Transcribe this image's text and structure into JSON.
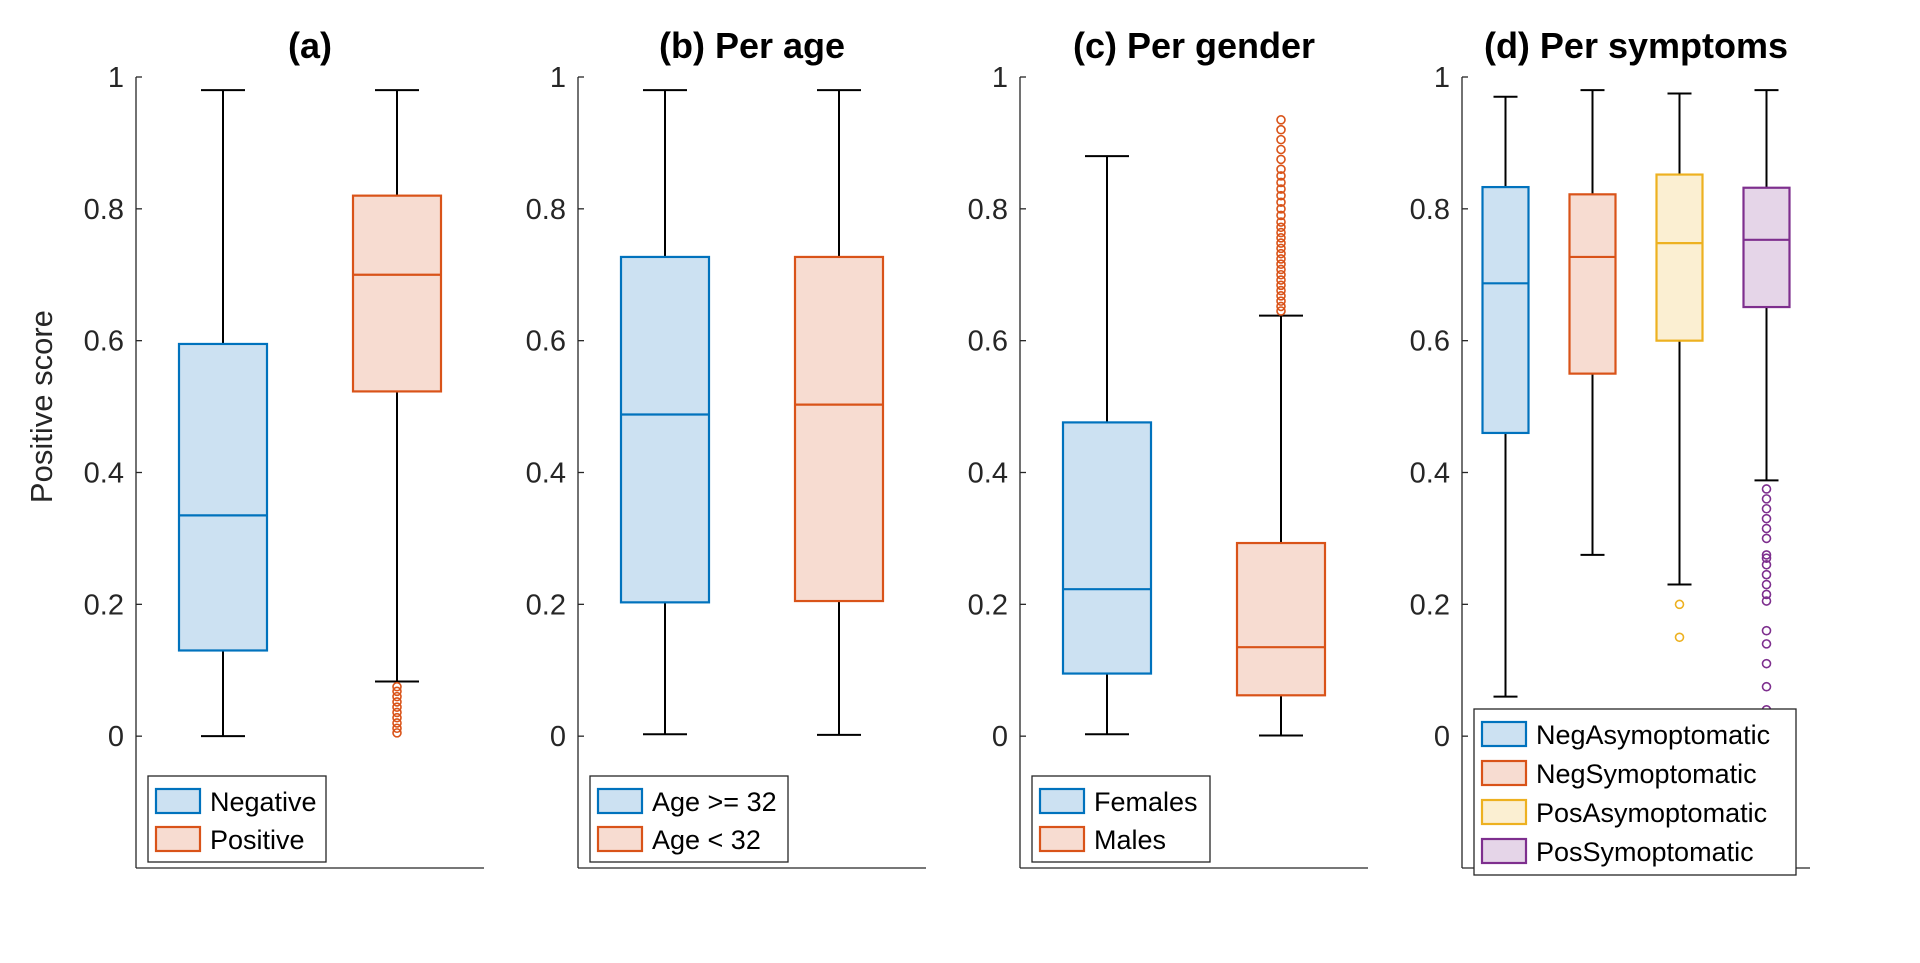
{
  "chart_data": [
    {
      "type": "box",
      "title": "(a)",
      "ylabel": "Positive score",
      "ylim": [
        -0.2,
        1
      ],
      "yticks": [
        "0",
        "0.2",
        "0.4",
        "0.6",
        "0.8",
        "1"
      ],
      "legend_position": "bottom-left",
      "series": [
        {
          "name": "Negative",
          "color": "#0072BD",
          "fill": "#CCE1F2",
          "whisker_low": 0.0,
          "q1": 0.13,
          "median": 0.335,
          "q3": 0.595,
          "whisker_high": 0.98,
          "outliers": []
        },
        {
          "name": "Positive",
          "color": "#D95319",
          "fill": "#F7DCD1",
          "whisker_low": 0.083,
          "q1": 0.523,
          "median": 0.7,
          "q3": 0.82,
          "whisker_high": 0.98,
          "outliers": [
            0.005,
            0.012,
            0.02,
            0.028,
            0.036,
            0.044,
            0.052,
            0.06,
            0.068,
            0.075
          ]
        }
      ]
    },
    {
      "type": "box",
      "title": "(b) Per age",
      "ylim": [
        -0.2,
        1
      ],
      "yticks": [
        "0",
        "0.2",
        "0.4",
        "0.6",
        "0.8",
        "1"
      ],
      "legend_position": "bottom-left",
      "series": [
        {
          "name": "Age >= 32",
          "color": "#0072BD",
          "fill": "#CCE1F2",
          "whisker_low": 0.003,
          "q1": 0.203,
          "median": 0.488,
          "q3": 0.727,
          "whisker_high": 0.98,
          "outliers": []
        },
        {
          "name": "Age < 32",
          "color": "#D95319",
          "fill": "#F7DCD1",
          "whisker_low": 0.002,
          "q1": 0.205,
          "median": 0.503,
          "q3": 0.727,
          "whisker_high": 0.98,
          "outliers": []
        }
      ]
    },
    {
      "type": "box",
      "title": "(c) Per gender",
      "ylim": [
        -0.2,
        1
      ],
      "yticks": [
        "0",
        "0.2",
        "0.4",
        "0.6",
        "0.8",
        "1"
      ],
      "legend_position": "bottom-left",
      "series": [
        {
          "name": "Females",
          "color": "#0072BD",
          "fill": "#CCE1F2",
          "whisker_low": 0.003,
          "q1": 0.095,
          "median": 0.223,
          "q3": 0.476,
          "whisker_high": 0.88,
          "outliers": []
        },
        {
          "name": "Males",
          "color": "#D95319",
          "fill": "#F7DCD1",
          "whisker_low": 0.001,
          "q1": 0.062,
          "median": 0.135,
          "q3": 0.293,
          "whisker_high": 0.638,
          "outliers": [
            0.645,
            0.652,
            0.66,
            0.668,
            0.676,
            0.684,
            0.692,
            0.7,
            0.708,
            0.716,
            0.724,
            0.732,
            0.74,
            0.748,
            0.756,
            0.764,
            0.772,
            0.78,
            0.79,
            0.8,
            0.81,
            0.82,
            0.83,
            0.84,
            0.85,
            0.86,
            0.875,
            0.89,
            0.905,
            0.92,
            0.935
          ]
        }
      ]
    },
    {
      "type": "box",
      "title": "(d) Per symptoms",
      "ylim": [
        -0.2,
        1
      ],
      "yticks": [
        "0",
        "0.2",
        "0.4",
        "0.6",
        "0.8",
        "1"
      ],
      "legend_position": "bottom-left",
      "series": [
        {
          "name": "NegAsymoptomatic",
          "color": "#0072BD",
          "fill": "#CCE1F2",
          "whisker_low": 0.06,
          "q1": 0.46,
          "median": 0.687,
          "q3": 0.833,
          "whisker_high": 0.97,
          "outliers": []
        },
        {
          "name": "NegSymoptomatic",
          "color": "#D95319",
          "fill": "#F7DCD1",
          "whisker_low": 0.275,
          "q1": 0.55,
          "median": 0.727,
          "q3": 0.822,
          "whisker_high": 0.98,
          "outliers": []
        },
        {
          "name": "PosAsymoptomatic",
          "color": "#EDB120",
          "fill": "#FBEFD2",
          "whisker_low": 0.23,
          "q1": 0.6,
          "median": 0.748,
          "q3": 0.852,
          "whisker_high": 0.975,
          "outliers": [
            0.15,
            0.2
          ]
        },
        {
          "name": "PosSymoptomatic",
          "color": "#7E2F8E",
          "fill": "#E5D5E8",
          "whisker_low": 0.388,
          "q1": 0.651,
          "median": 0.753,
          "q3": 0.832,
          "whisker_high": 0.98,
          "outliers": [
            0.04,
            0.075,
            0.11,
            0.14,
            0.16,
            0.205,
            0.215,
            0.23,
            0.245,
            0.26,
            0.27,
            0.275,
            0.3,
            0.315,
            0.33,
            0.345,
            0.36,
            0.375
          ]
        }
      ]
    }
  ]
}
